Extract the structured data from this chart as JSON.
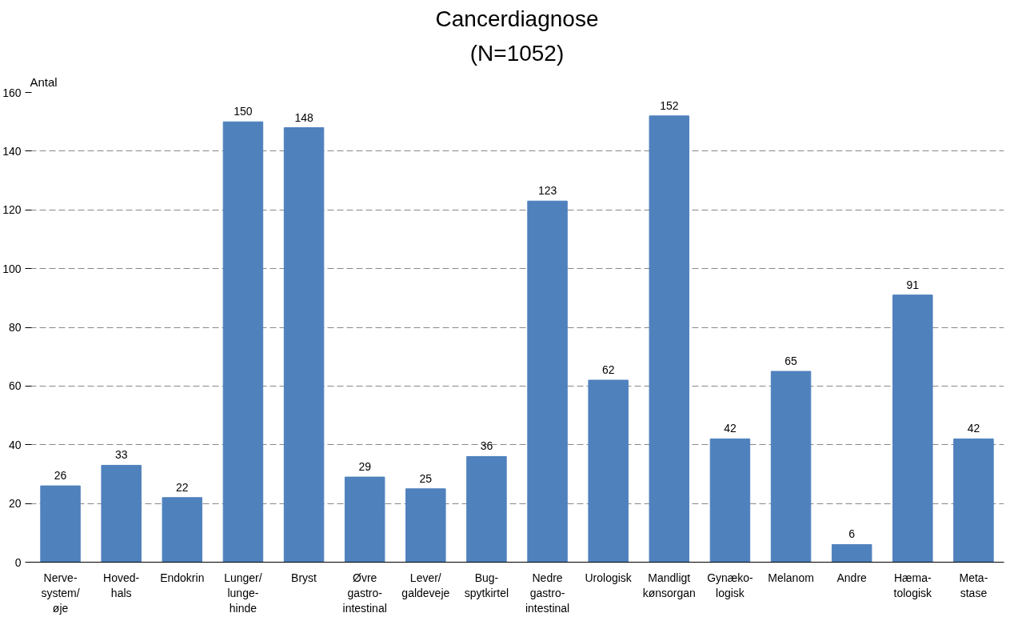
{
  "chart_data": {
    "type": "bar",
    "title": "Cancerdiagnose",
    "subtitle": "(N=1052)",
    "ylabel": "Antal",
    "categories": [
      "Nerve-\nsystem/\nøje",
      "Hoved-\nhals",
      "Endokrin",
      "Lunger/\nlunge-\nhinde",
      "Bryst",
      "Øvre\ngastro-\nintestinal",
      "Lever/\ngaldeveje",
      "Bug-\nspytkirtel",
      "Nedre\ngastro-\nintestinal",
      "Urologisk",
      "Mandligt\nkønsorgan",
      "Gynæko-\nlogisk",
      "Melanom",
      "Andre",
      "Hæma-\ntologisk",
      "Meta-\nstase"
    ],
    "values": [
      26,
      33,
      22,
      150,
      148,
      29,
      25,
      36,
      123,
      62,
      152,
      42,
      65,
      6,
      91,
      42
    ],
    "color": "#4f81bd",
    "ylim": [
      0,
      160
    ],
    "yticks": [
      0,
      20,
      40,
      60,
      80,
      100,
      120,
      140,
      160
    ],
    "grid": "y",
    "data_labels": true
  }
}
